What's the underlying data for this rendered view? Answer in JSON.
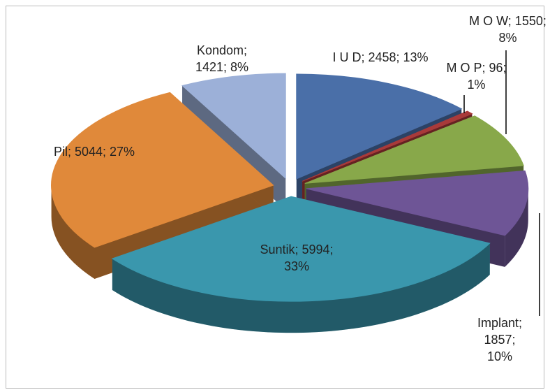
{
  "chart_data": {
    "type": "pie3d",
    "categories": [
      "I U D",
      "M O P",
      "M O W",
      "Implant",
      "Suntik",
      "Pil",
      "Kondom"
    ],
    "values": [
      2458,
      96,
      1550,
      1857,
      5994,
      5044,
      1421
    ],
    "value_labels": [
      "I U D; 2458; 13%",
      "M O P; 96; 1%",
      "M O W; 1550; 8%",
      "Implant; 1857; 10%",
      "Suntik; 5994; 33%",
      "Pil; 5044; 27%",
      "Kondom; 1421; 8%"
    ],
    "colors": [
      "#4a6fa8",
      "#a83a3a",
      "#88a84a",
      "#6e5596",
      "#3a97ad",
      "#e0893a",
      "#9cb0d8"
    ]
  }
}
